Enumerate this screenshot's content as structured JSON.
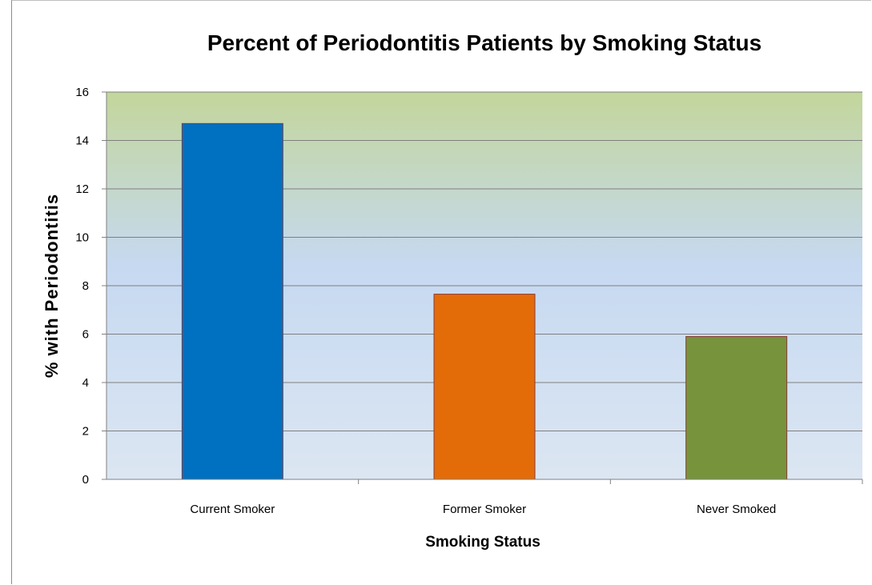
{
  "chart_data": {
    "type": "bar",
    "title": "Percent  of Periodontitis  Patients by Smoking Status",
    "xlabel": "Smoking Status",
    "ylabel": "% with Periodontitis",
    "categories": [
      "Current Smoker",
      "Former Smoker",
      "Never Smoked"
    ],
    "values": [
      14.7,
      7.65,
      5.9
    ],
    "colors": [
      "#0070c0",
      "#e36c09",
      "#77933c"
    ],
    "ylim": [
      0,
      16
    ],
    "yticks": [
      0,
      2,
      4,
      6,
      8,
      10,
      12,
      14,
      16
    ],
    "grid": true,
    "legend": "none",
    "background_gradient": [
      "#c3d69b",
      "#c6d9f1",
      "#dce6f2"
    ]
  }
}
